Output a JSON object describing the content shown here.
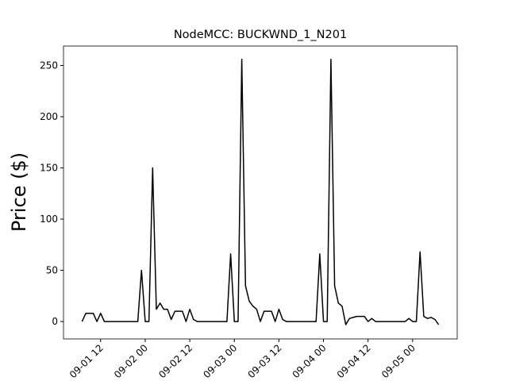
{
  "chart_data": {
    "type": "line",
    "title": "NodeMCC: BUCKWND_1_N201",
    "y_label": "Price ($)",
    "x": [
      "09-01 07",
      "09-01 08",
      "09-01 09",
      "09-01 10",
      "09-01 11",
      "09-01 12",
      "09-01 13",
      "09-01 14",
      "09-01 15",
      "09-01 16",
      "09-01 17",
      "09-01 18",
      "09-01 19",
      "09-01 20",
      "09-01 21",
      "09-01 22",
      "09-01 23",
      "09-02 00",
      "09-02 01",
      "09-02 02",
      "09-02 03",
      "09-02 04",
      "09-02 05",
      "09-02 06",
      "09-02 07",
      "09-02 08",
      "09-02 09",
      "09-02 10",
      "09-02 11",
      "09-02 12",
      "09-02 13",
      "09-02 14",
      "09-02 15",
      "09-02 16",
      "09-02 17",
      "09-02 18",
      "09-02 19",
      "09-02 20",
      "09-02 21",
      "09-02 22",
      "09-02 23",
      "09-03 00",
      "09-03 01",
      "09-03 02",
      "09-03 03",
      "09-03 04",
      "09-03 05",
      "09-03 06",
      "09-03 07",
      "09-03 08",
      "09-03 09",
      "09-03 10",
      "09-03 11",
      "09-03 12",
      "09-03 13",
      "09-03 14",
      "09-03 15",
      "09-03 16",
      "09-03 17",
      "09-03 18",
      "09-03 19",
      "09-03 20",
      "09-03 21",
      "09-03 22",
      "09-03 23",
      "09-04 00",
      "09-04 01",
      "09-04 02",
      "09-04 03",
      "09-04 04",
      "09-04 05",
      "09-04 06",
      "09-04 07",
      "09-04 08",
      "09-04 09",
      "09-04 10",
      "09-04 11",
      "09-04 12",
      "09-04 13",
      "09-04 14",
      "09-04 15",
      "09-04 16",
      "09-04 17",
      "09-04 18",
      "09-04 19",
      "09-04 20",
      "09-04 21",
      "09-04 22",
      "09-04 23",
      "09-05 00",
      "09-05 01",
      "09-05 02",
      "09-05 03",
      "09-05 04",
      "09-05 05",
      "09-05 06",
      "09-05 07"
    ],
    "series": [
      {
        "name": "Price",
        "color": "#000000",
        "values": [
          0,
          8,
          8,
          8,
          0,
          8,
          0,
          0,
          0,
          0,
          0,
          0,
          0,
          0,
          0,
          0,
          50,
          0,
          0,
          150,
          12,
          18,
          12,
          12,
          2,
          10,
          10,
          10,
          0,
          12,
          2,
          0,
          0,
          0,
          0,
          0,
          0,
          0,
          0,
          0,
          66,
          0,
          0,
          256,
          35,
          20,
          15,
          12,
          0,
          10,
          10,
          10,
          0,
          12,
          2,
          0,
          0,
          0,
          0,
          0,
          0,
          0,
          0,
          0,
          66,
          0,
          0,
          256,
          35,
          18,
          15,
          -3,
          3,
          4,
          5,
          5,
          5,
          0,
          3,
          0,
          0,
          0,
          0,
          0,
          0,
          0,
          0,
          0,
          3,
          0,
          0,
          68,
          5,
          3,
          4,
          2,
          -3
        ]
      }
    ],
    "xlim": [
      "09-01 02",
      "09-05 12"
    ],
    "xticks": [
      "09-01 12",
      "09-02 00",
      "09-02 12",
      "09-03 00",
      "09-03 12",
      "09-04 00",
      "09-04 12",
      "09-05 00"
    ],
    "ylim": [
      -17,
      269
    ],
    "yticks": [
      0,
      50,
      100,
      150,
      200,
      250
    ],
    "grid": false
  }
}
